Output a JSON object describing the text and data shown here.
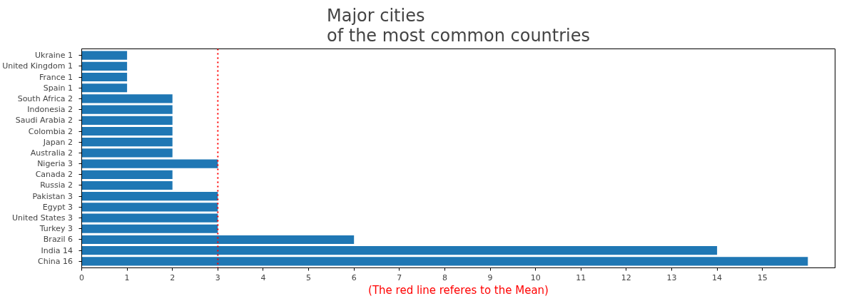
{
  "chart_data": {
    "type": "bar",
    "orientation": "horizontal",
    "title": "Major cities\nof the most common countries",
    "xlabel": "(The red line referes to the Mean)",
    "categories": [
      "Ukraine  1",
      "United Kingdom  1",
      "France  1",
      "Spain  1",
      "South Africa  2",
      "Indonesia  2",
      "Saudi Arabia  2",
      "Colombia  2",
      "Japan  2",
      "Australia  2",
      "Nigeria  3",
      "Canada  2",
      "Russia  2",
      "Pakistan  3",
      "Egypt  3",
      "United States  3",
      "Turkey  3",
      "Brazil  6",
      "India  14",
      "China  16"
    ],
    "values": [
      1,
      1,
      1,
      1,
      2,
      2,
      2,
      2,
      2,
      2,
      3,
      2,
      2,
      3,
      3,
      3,
      3,
      6,
      14,
      16
    ],
    "color": "#1f77b4",
    "xlim": [
      0,
      16.6
    ],
    "xticks": [
      0,
      1,
      2,
      3,
      4,
      5,
      6,
      7,
      8,
      9,
      10,
      11,
      12,
      13,
      14,
      15
    ],
    "grid": false,
    "ref_lines": [
      {
        "axis": "x",
        "value": 3,
        "color": "#ff0000",
        "line_style": "dotted"
      }
    ]
  }
}
